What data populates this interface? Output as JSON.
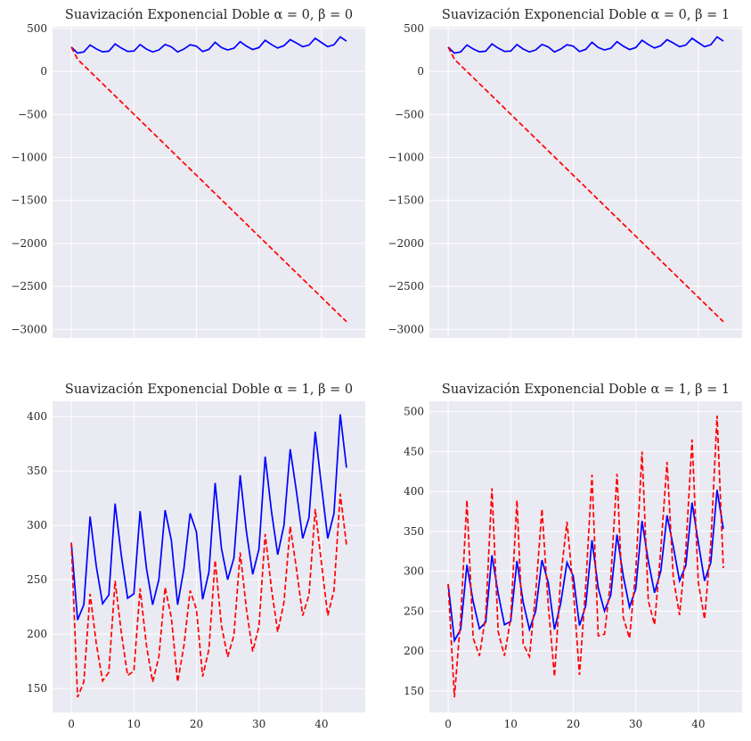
{
  "chart_data": [
    {
      "type": "line",
      "title": "Suavización Exponencial Doble α = 0, β = 0",
      "xlabel": "",
      "ylabel": "",
      "xlim": [
        -3,
        47
      ],
      "ylim": [
        -3100,
        520
      ],
      "yticks": [
        500,
        0,
        -500,
        -1000,
        -1500,
        -2000,
        -2500,
        -3000
      ],
      "ytick_labels": [
        "500",
        "0",
        "−500",
        "−1000",
        "−1500",
        "−2000",
        "−2500",
        "−3000"
      ],
      "xticks": [
        0,
        10,
        20,
        30,
        40
      ],
      "xtick_labels": [],
      "grid": true,
      "series": [
        {
          "color": "#0000ff",
          "style": "solid",
          "x_start": 0,
          "values": [
            284,
            213,
            227,
            308,
            262,
            228,
            236,
            320,
            272,
            233,
            237,
            313,
            261,
            227,
            250,
            314,
            286,
            227,
            260,
            311,
            294,
            232,
            257,
            339,
            279,
            250,
            270,
            346,
            294,
            255,
            278,
            363,
            313,
            273,
            300,
            370,
            331,
            288,
            307,
            386,
            336,
            288,
            311,
            402,
            353
          ]
        },
        {
          "color": "#ff0000",
          "style": "dashed",
          "x_start": 0,
          "values": [
            284,
            142,
            71,
            0,
            -71,
            -142,
            -213,
            -284,
            -355,
            -426,
            -497,
            -568,
            -639,
            -710,
            -781,
            -852,
            -923,
            -994,
            -1065,
            -1136,
            -1207,
            -1278,
            -1349,
            -1420,
            -1491,
            -1562,
            -1633,
            -1704,
            -1775,
            -1846,
            -1917,
            -1988,
            -2059,
            -2130,
            -2201,
            -2272,
            -2343,
            -2414,
            -2485,
            -2556,
            -2627,
            -2698,
            -2769,
            -2840,
            -2911
          ]
        }
      ]
    },
    {
      "type": "line",
      "title": "Suavización Exponencial Doble α = 0, β = 1",
      "xlabel": "",
      "ylabel": "",
      "xlim": [
        -3,
        47
      ],
      "ylim": [
        -3100,
        520
      ],
      "yticks": [
        500,
        0,
        -500,
        -1000,
        -1500,
        -2000,
        -2500,
        -3000
      ],
      "ytick_labels": [
        "500",
        "0",
        "−500",
        "−1000",
        "−1500",
        "−2000",
        "−2500",
        "−3000"
      ],
      "xticks": [
        0,
        10,
        20,
        30,
        40
      ],
      "xtick_labels": [],
      "grid": true,
      "series": [
        {
          "color": "#0000ff",
          "style": "solid",
          "x_start": 0,
          "values": [
            284,
            213,
            227,
            308,
            262,
            228,
            236,
            320,
            272,
            233,
            237,
            313,
            261,
            227,
            250,
            314,
            286,
            227,
            260,
            311,
            294,
            232,
            257,
            339,
            279,
            250,
            270,
            346,
            294,
            255,
            278,
            363,
            313,
            273,
            300,
            370,
            331,
            288,
            307,
            386,
            336,
            288,
            311,
            402,
            353
          ]
        },
        {
          "color": "#ff0000",
          "style": "dashed",
          "x_start": 0,
          "values": [
            284,
            142,
            71,
            0,
            -71,
            -142,
            -213,
            -284,
            -355,
            -426,
            -497,
            -568,
            -639,
            -710,
            -781,
            -852,
            -923,
            -994,
            -1065,
            -1136,
            -1207,
            -1278,
            -1349,
            -1420,
            -1491,
            -1562,
            -1633,
            -1704,
            -1775,
            -1846,
            -1917,
            -1988,
            -2059,
            -2130,
            -2201,
            -2272,
            -2343,
            -2414,
            -2485,
            -2556,
            -2627,
            -2698,
            -2769,
            -2840,
            -2911
          ]
        }
      ]
    },
    {
      "type": "line",
      "title": "Suavización Exponencial Doble α = 1, β = 0",
      "xlabel": "",
      "ylabel": "",
      "xlim": [
        -3,
        47
      ],
      "ylim": [
        128,
        414
      ],
      "yticks": [
        400,
        350,
        300,
        250,
        200,
        150
      ],
      "ytick_labels": [
        "400",
        "350",
        "300",
        "250",
        "200",
        "150"
      ],
      "xticks": [
        0,
        10,
        20,
        30,
        40
      ],
      "xtick_labels": [
        "0",
        "10",
        "20",
        "30",
        "40"
      ],
      "grid": true,
      "series": [
        {
          "color": "#0000ff",
          "style": "solid",
          "x_start": 0,
          "values": [
            284,
            213,
            227,
            308,
            262,
            228,
            236,
            320,
            272,
            233,
            237,
            313,
            261,
            227,
            250,
            314,
            286,
            227,
            260,
            311,
            294,
            232,
            257,
            339,
            279,
            250,
            270,
            346,
            294,
            255,
            278,
            363,
            313,
            273,
            300,
            370,
            331,
            288,
            307,
            386,
            336,
            288,
            311,
            402,
            353
          ]
        },
        {
          "color": "#ff0000",
          "style": "dashed",
          "x_start": 0,
          "values": [
            284,
            142,
            156,
            237,
            191,
            157,
            165,
            249,
            201,
            162,
            166,
            242,
            190,
            156,
            179,
            243,
            215,
            156,
            189,
            240,
            223,
            161,
            186,
            268,
            208,
            179,
            199,
            275,
            223,
            184,
            207,
            292,
            242,
            202,
            229,
            299,
            260,
            217,
            236,
            315,
            265,
            217,
            240,
            329,
            282
          ]
        }
      ]
    },
    {
      "type": "line",
      "title": "Suavización Exponencial Doble α = 1, β = 1",
      "xlabel": "",
      "ylabel": "",
      "xlim": [
        -3,
        47
      ],
      "ylim": [
        123,
        513
      ],
      "yticks": [
        500,
        450,
        400,
        350,
        300,
        250,
        200,
        150
      ],
      "ytick_labels": [
        "500",
        "450",
        "400",
        "350",
        "300",
        "250",
        "200",
        "150"
      ],
      "xticks": [
        0,
        10,
        20,
        30,
        40
      ],
      "xtick_labels": [
        "0",
        "10",
        "20",
        "30",
        "40"
      ],
      "grid": true,
      "series": [
        {
          "color": "#0000ff",
          "style": "solid",
          "x_start": 0,
          "values": [
            284,
            213,
            227,
            308,
            262,
            228,
            236,
            320,
            272,
            233,
            237,
            313,
            261,
            227,
            250,
            314,
            286,
            227,
            260,
            311,
            294,
            232,
            257,
            339,
            279,
            250,
            270,
            346,
            294,
            255,
            278,
            363,
            313,
            273,
            300,
            370,
            331,
            288,
            307,
            386,
            336,
            288,
            311,
            402,
            353
          ]
        },
        {
          "color": "#ff0000",
          "style": "dashed",
          "x_start": 0,
          "values": [
            284,
            142,
            241,
            389,
            216,
            194,
            244,
            404,
            224,
            194,
            241,
            389,
            209,
            193,
            273,
            378,
            258,
            168,
            293,
            362,
            277,
            170,
            282,
            421,
            219,
            221,
            290,
            422,
            242,
            216,
            301,
            450,
            263,
            233,
            327,
            437,
            292,
            245,
            326,
            465,
            286,
            240,
            334,
            495,
            304
          ]
        }
      ]
    }
  ]
}
